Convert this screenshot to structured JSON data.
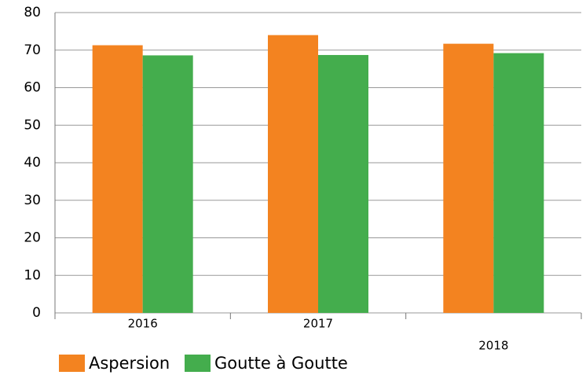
{
  "chart_data": {
    "type": "bar",
    "categories": [
      "2016",
      "2017",
      "2018"
    ],
    "series": [
      {
        "name": "Aspersion",
        "color": "#f38320",
        "values": [
          71.3,
          74,
          71.7
        ]
      },
      {
        "name": "Goutte à Goutte",
        "color": "#44ad4d",
        "values": [
          68.6,
          68.7,
          69.2
        ]
      }
    ],
    "ylim": [
      0,
      80
    ],
    "yticks": [
      0,
      10,
      20,
      30,
      40,
      50,
      60,
      70,
      80
    ],
    "grid": true
  }
}
